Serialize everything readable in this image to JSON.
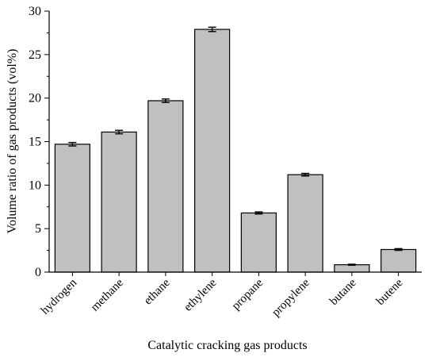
{
  "chart_data": {
    "type": "bar",
    "title": "",
    "xlabel": "Catalytic cracking gas products",
    "ylabel": "Volume ratio of gas products (vol%)",
    "ylim": [
      0,
      30
    ],
    "y_ticks": [
      0,
      5,
      10,
      15,
      20,
      25,
      30
    ],
    "grid": false,
    "bar_color": "#c0c0c0",
    "categories": [
      "hydrogen",
      "methane",
      "ethane",
      "ethylene",
      "propane",
      "propylene",
      "butane",
      "butene"
    ],
    "values": [
      14.7,
      16.1,
      19.7,
      27.9,
      6.8,
      11.2,
      0.85,
      2.6
    ],
    "errors": [
      0.2,
      0.2,
      0.2,
      0.25,
      0.12,
      0.15,
      0.06,
      0.1
    ]
  }
}
